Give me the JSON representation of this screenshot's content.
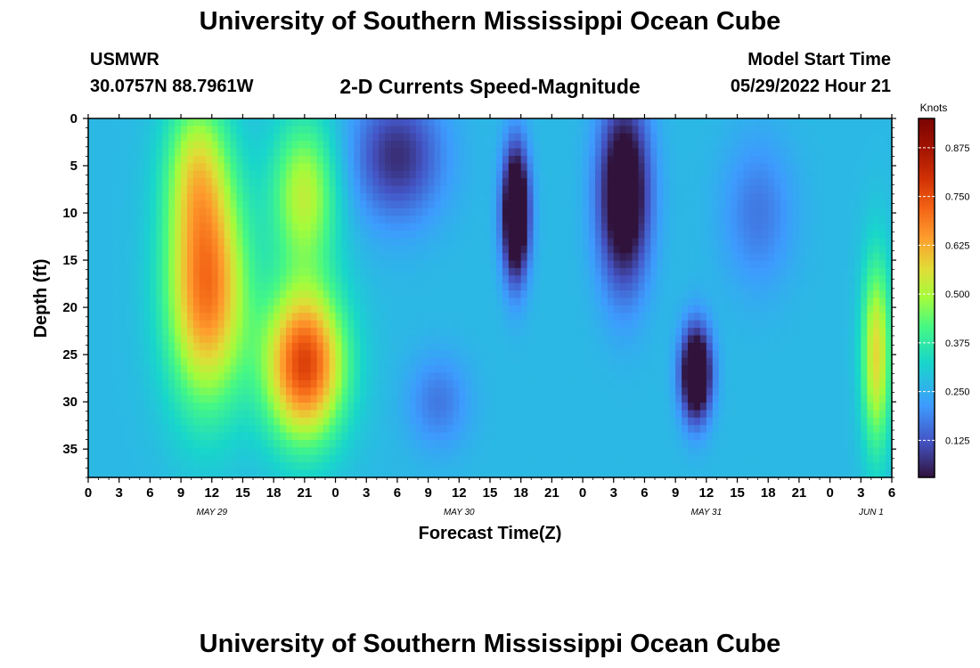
{
  "header": {
    "title": "University of Southern Mississippi Ocean Cube",
    "station": "USMWR",
    "coords": "30.0757N  88.7961W",
    "subtitle": "2-D Currents Speed-Magnitude",
    "start_label": "Model Start Time",
    "start_value": "05/29/2022 Hour 21"
  },
  "footer": {
    "title": "University of Southern Mississippi Ocean Cube"
  },
  "chart_data": {
    "type": "heatmap",
    "xlabel": "Forecast Time(Z)",
    "ylabel": "Depth (ft)",
    "colorbar_label": "Knots",
    "colorbar_ticks": [
      "0.125",
      "0.250",
      "0.375",
      "0.500",
      "0.625",
      "0.750",
      "0.875"
    ],
    "colorbar_range": [
      0.03,
      0.95
    ],
    "x_tick_labels": [
      "0",
      "3",
      "6",
      "9",
      "12",
      "15",
      "18",
      "21",
      "0",
      "3",
      "6",
      "9",
      "12",
      "15",
      "18",
      "21",
      "0",
      "3",
      "6",
      "9",
      "12",
      "15",
      "18",
      "21",
      "0",
      "3",
      "6"
    ],
    "date_labels": [
      {
        "label": "MAY 29",
        "hour": 12
      },
      {
        "label": "MAY 30",
        "hour": 36
      },
      {
        "label": "MAY 31",
        "hour": 60
      },
      {
        "label": "JUN 1",
        "hour": 76
      }
    ],
    "x_range_hours": [
      0,
      78
    ],
    "y_ticks": [
      0,
      5,
      10,
      15,
      20,
      25,
      30,
      35
    ],
    "y_range_ft": [
      0,
      38
    ],
    "y_inverted": true,
    "speed_features": [
      {
        "hour": 11.5,
        "depth": 18,
        "speed": 0.68,
        "hour_spread": 3.8,
        "depth_spread": 12
      },
      {
        "hour": 10.5,
        "depth": 5,
        "speed": 0.45,
        "hour_spread": 3.0,
        "depth_spread": 8
      },
      {
        "hour": 21,
        "depth": 26,
        "speed": 0.75,
        "hour_spread": 3.8,
        "depth_spread": 8
      },
      {
        "hour": 21,
        "depth": 8,
        "speed": 0.5,
        "hour_spread": 3.2,
        "depth_spread": 8
      },
      {
        "hour": 34,
        "depth": 30,
        "speed": 0.15,
        "hour_spread": 3.0,
        "depth_spread": 5
      },
      {
        "hour": 30,
        "depth": 4,
        "speed": 0.05,
        "hour_spread": 4.5,
        "depth_spread": 7
      },
      {
        "hour": 41.5,
        "depth": 10,
        "speed": -0.18,
        "hour_spread": 1.3,
        "depth_spread": 7
      },
      {
        "hour": 59,
        "depth": 27,
        "speed": -0.15,
        "hour_spread": 1.5,
        "depth_spread": 5
      },
      {
        "hour": 52,
        "depth": 8,
        "speed": -0.1,
        "hour_spread": 2.5,
        "depth_spread": 10
      },
      {
        "hour": 65,
        "depth": 10,
        "speed": 0.15,
        "hour_spread": 3.5,
        "depth_spread": 8
      },
      {
        "hour": 76.5,
        "depth": 25,
        "speed": 0.55,
        "hour_spread": 1.4,
        "depth_spread": 10
      },
      {
        "hour": 0,
        "depth": 20,
        "speed": 0.25,
        "hour_spread": 0.9,
        "depth_spread": 25
      }
    ]
  }
}
